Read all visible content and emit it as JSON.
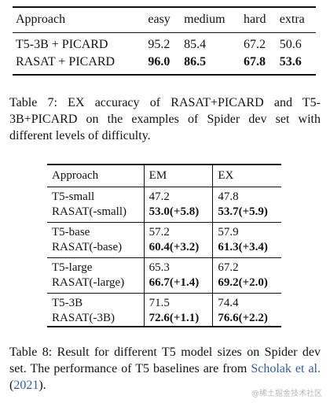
{
  "table7": {
    "headers": [
      "Approach",
      "easy",
      "medium",
      "hard",
      "extra"
    ],
    "rows": [
      {
        "approach": "T5-3B + PICARD",
        "easy": "95.2",
        "medium": "85.4",
        "hard": "67.2",
        "extra": "50.6"
      },
      {
        "approach": "RASAT + PICARD",
        "easy": "96.0",
        "medium": "86.5",
        "hard": "67.8",
        "extra": "53.6"
      }
    ],
    "caption": "Table 7: EX accuracy of RASAT+PICARD and T5-3B+PICARD on the examples of Spider dev set with different levels of difficulty."
  },
  "table8": {
    "headers": [
      "Approach",
      "EM",
      "EX"
    ],
    "groups": [
      {
        "base": {
          "name": "T5-small",
          "em": "47.2",
          "ex": "47.8"
        },
        "rasat": {
          "name": "RASAT(-small)",
          "em": "53.0(+5.8)",
          "ex": "53.7(+5.9)"
        }
      },
      {
        "base": {
          "name": "T5-base",
          "em": "57.2",
          "ex": "57.9"
        },
        "rasat": {
          "name": "RASAT(-base)",
          "em": "60.4(+3.2)",
          "ex": "61.3(+3.4)"
        }
      },
      {
        "base": {
          "name": "T5-large",
          "em": "65.3",
          "ex": "67.2"
        },
        "rasat": {
          "name": "RASAT(-large)",
          "em": "66.7(+1.4)",
          "ex": "69.2(+2.0)"
        }
      },
      {
        "base": {
          "name": "T5-3B",
          "em": "71.5",
          "ex": "74.4"
        },
        "rasat": {
          "name": "RASAT(-3B)",
          "em": "72.6(+1.1)",
          "ex": "76.6(+2.2)"
        }
      }
    ],
    "caption_text": "Table 8: Result for different T5 model sizes on Spider dev set. The performance of T5 baselines are from ",
    "caption_citation": "Scholak et al.",
    "caption_year": "2021",
    "caption_end": ")."
  },
  "watermark": "@稀土掘金技术社区",
  "colors": {
    "text": "#111111",
    "link": "#2a5db0",
    "watermark": "#b8b8b8"
  }
}
